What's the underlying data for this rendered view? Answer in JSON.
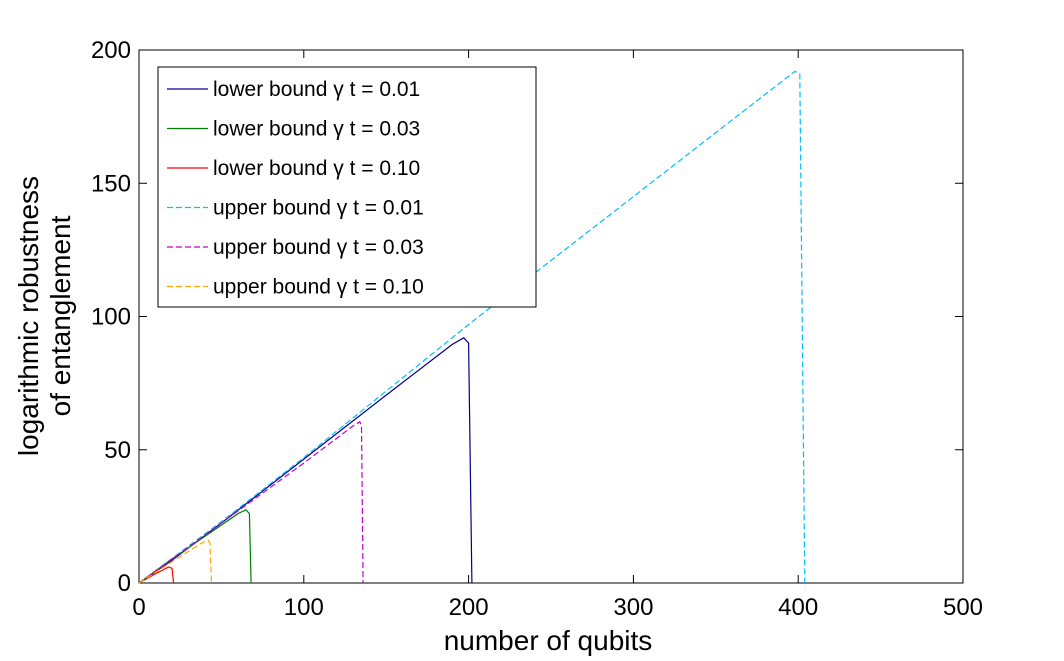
{
  "chart_data": {
    "type": "line",
    "title": "",
    "xlabel": "number of qubits",
    "ylabel_lines": [
      "logarithmic robustness",
      "of entanglement"
    ],
    "xlim": [
      0,
      500
    ],
    "ylim": [
      0,
      200
    ],
    "xticks": [
      "0",
      "100",
      "200",
      "300",
      "400",
      "500"
    ],
    "yticks": [
      "0",
      "50",
      "100",
      "150",
      "200"
    ],
    "grid": false,
    "legend_position": "top-left",
    "series": [
      {
        "name": "lower bound γ t = 0.01",
        "color": "#00008b",
        "dash": "solid",
        "x": [
          0,
          20,
          50,
          100,
          150,
          190,
          197,
          200,
          202
        ],
        "y": [
          0,
          8.5,
          22.5,
          46.5,
          70.5,
          89.5,
          92,
          90,
          0
        ]
      },
      {
        "name": "lower bound γ t = 0.03",
        "color": "#008000",
        "dash": "solid",
        "x": [
          0,
          20,
          40,
          60,
          65,
          67,
          68
        ],
        "y": [
          0,
          9,
          17.5,
          26,
          27.5,
          26,
          0
        ]
      },
      {
        "name": "lower bound γ t = 0.10",
        "color": "#ff0000",
        "dash": "solid",
        "x": [
          0,
          10,
          18,
          20,
          21
        ],
        "y": [
          0,
          3.5,
          6,
          5.5,
          0
        ]
      },
      {
        "name": "upper bound γ t = 0.01",
        "color": "#00bfff",
        "dash": "dashed",
        "x": [
          0,
          50,
          100,
          150,
          200,
          250,
          300,
          350,
          398,
          401,
          404
        ],
        "y": [
          0,
          23,
          47,
          72,
          97,
          121,
          145,
          169,
          192,
          191,
          0
        ]
      },
      {
        "name": "upper bound γ t = 0.03",
        "color": "#c800c8",
        "dash": "dashed",
        "x": [
          0,
          50,
          100,
          130,
          134,
          135,
          136
        ],
        "y": [
          0,
          22.5,
          45,
          59,
          60.5,
          59,
          0
        ]
      },
      {
        "name": "upper bound γ t = 0.10",
        "color": "#ffa500",
        "dash": "dashed",
        "x": [
          0,
          20,
          38,
          42,
          43,
          44
        ],
        "y": [
          0,
          8,
          15,
          16,
          15,
          0
        ]
      }
    ]
  }
}
